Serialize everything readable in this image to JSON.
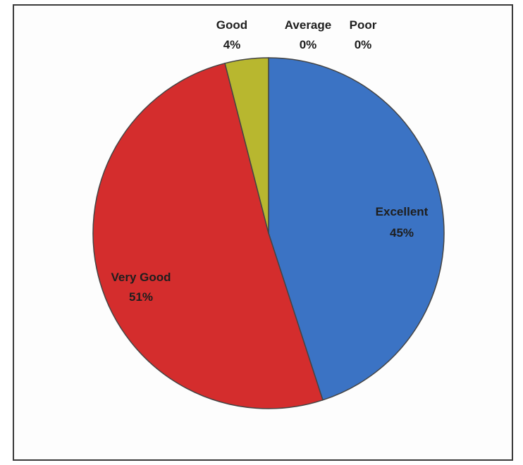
{
  "chart_data": {
    "type": "pie",
    "title": "",
    "slices": [
      {
        "label": "Excellent",
        "value": 45,
        "value_label": "45%",
        "color": "#3b73c4"
      },
      {
        "label": "Very Good",
        "value": 51,
        "value_label": "51%",
        "color": "#d42d2d"
      },
      {
        "label": "Good",
        "value": 4,
        "value_label": "4%",
        "color": "#b8b72f"
      },
      {
        "label": "Average",
        "value": 0,
        "value_label": "0%",
        "color": "#7a7a7a"
      },
      {
        "label": "Poor",
        "value": 0,
        "value_label": "0%",
        "color": "#7a7a7a"
      }
    ],
    "start_angle_deg": 0,
    "direction": "clockwise",
    "legend": "none",
    "edge_color": "#444444"
  }
}
